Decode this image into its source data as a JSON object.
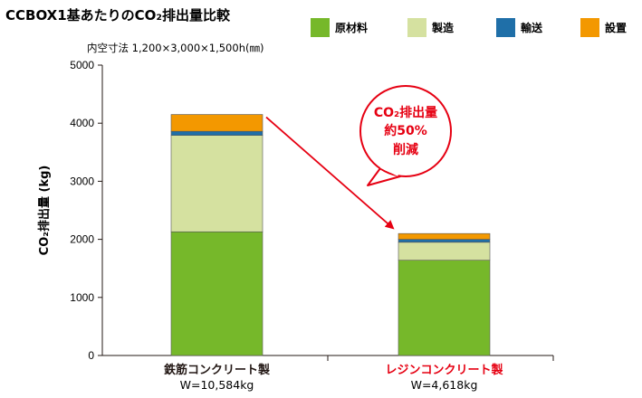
{
  "title": "CCBOX1基あたりのCO₂排出量比較",
  "subtitle": "内空寸法 1,200×3,000×1,500h(㎜)",
  "chart_data": {
    "type": "bar",
    "stacked": true,
    "title": "CCBOX1基あたりのCO₂排出量比較",
    "xlabel": "",
    "ylabel": "CO₂排出量 (kg)",
    "ylim": [
      0,
      5000
    ],
    "yticks": [
      0,
      1000,
      2000,
      3000,
      4000,
      5000
    ],
    "grid": false,
    "legend": "top",
    "categories": [
      "鉄筋コンクリート製",
      "レジンコンクリート製"
    ],
    "category_notes": [
      "W=10,584kg",
      "W=4,618kg"
    ],
    "category_colors": [
      "#231815",
      "#e60012"
    ],
    "series": [
      {
        "name": "原材料",
        "color": "#76b82a",
        "values": [
          2130,
          1640
        ]
      },
      {
        "name": "製造",
        "color": "#d5e1a0",
        "values": [
          1660,
          310
        ]
      },
      {
        "name": "輸送",
        "color": "#1f6fa8",
        "values": [
          70,
          50
        ]
      },
      {
        "name": "設置",
        "color": "#f39800",
        "values": [
          290,
          100
        ]
      }
    ],
    "annotation": {
      "lines": [
        "CO₂排出量",
        "約50%",
        "削減"
      ],
      "color": "#e60012"
    }
  }
}
